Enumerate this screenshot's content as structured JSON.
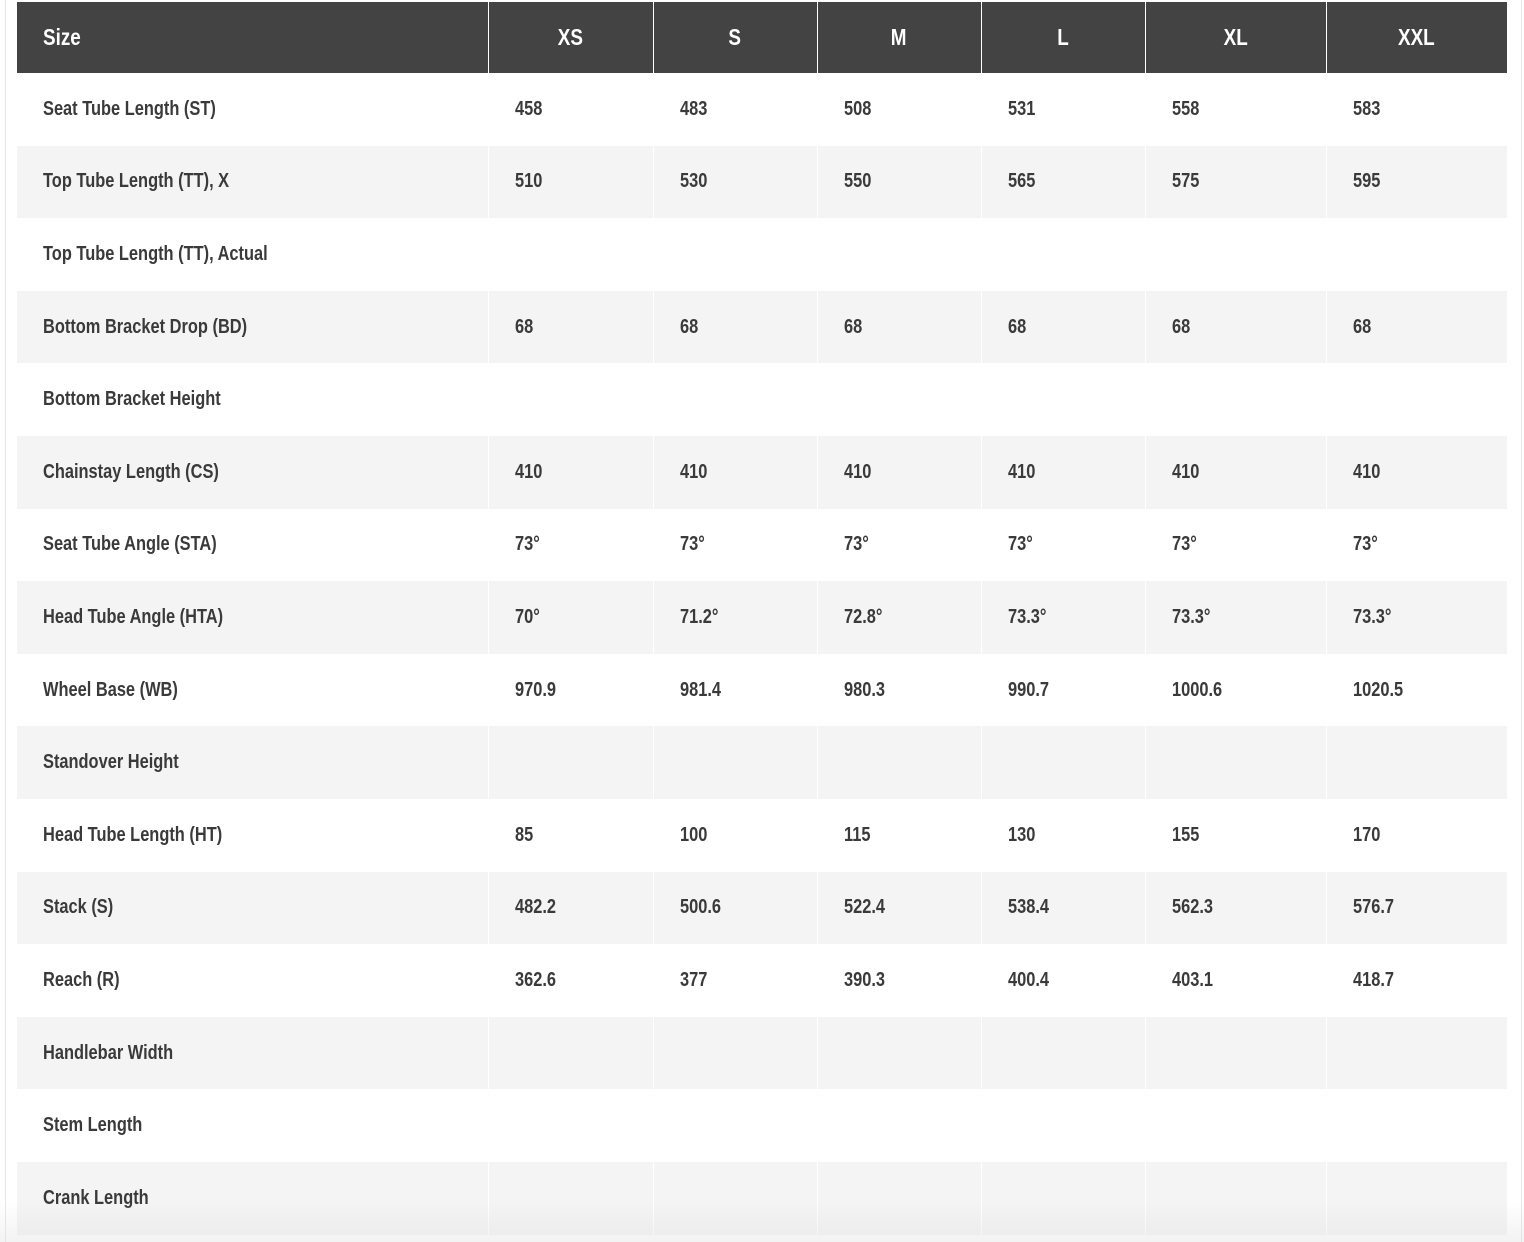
{
  "table": {
    "headers": [
      "Size",
      "XS",
      "S",
      "M",
      "L",
      "XL",
      "XXL"
    ],
    "rows": [
      {
        "label": "Seat Tube Length (ST)",
        "values": [
          "458",
          "483",
          "508",
          "531",
          "558",
          "583"
        ]
      },
      {
        "label": "Top Tube Length (TT), X",
        "values": [
          "510",
          "530",
          "550",
          "565",
          "575",
          "595"
        ]
      },
      {
        "label": "Top Tube Length (TT), Actual",
        "values": [
          "",
          "",
          "",
          "",
          "",
          ""
        ]
      },
      {
        "label": "Bottom Bracket Drop (BD)",
        "values": [
          "68",
          "68",
          "68",
          "68",
          "68",
          "68"
        ]
      },
      {
        "label": "Bottom Bracket Height",
        "values": [
          "",
          "",
          "",
          "",
          "",
          ""
        ]
      },
      {
        "label": "Chainstay Length (CS)",
        "values": [
          "410",
          "410",
          "410",
          "410",
          "410",
          "410"
        ]
      },
      {
        "label": "Seat Tube Angle (STA)",
        "values": [
          "73°",
          "73°",
          "73°",
          "73°",
          "73°",
          "73°"
        ]
      },
      {
        "label": "Head Tube Angle (HTA)",
        "values": [
          "70°",
          "71.2°",
          "72.8°",
          "73.3°",
          "73.3°",
          "73.3°"
        ]
      },
      {
        "label": "Wheel Base (WB)",
        "values": [
          "970.9",
          "981.4",
          "980.3",
          "990.7",
          "1000.6",
          "1020.5"
        ]
      },
      {
        "label": "Standover Height",
        "values": [
          "",
          "",
          "",
          "",
          "",
          ""
        ]
      },
      {
        "label": "Head Tube Length (HT)",
        "values": [
          "85",
          "100",
          "115",
          "130",
          "155",
          "170"
        ]
      },
      {
        "label": "Stack (S)",
        "values": [
          "482.2",
          "500.6",
          "522.4",
          "538.4",
          "562.3",
          "576.7"
        ]
      },
      {
        "label": "Reach (R)",
        "values": [
          "362.6",
          "377",
          "390.3",
          "400.4",
          "403.1",
          "418.7"
        ]
      },
      {
        "label": "Handlebar Width",
        "values": [
          "",
          "",
          "",
          "",
          "",
          ""
        ]
      },
      {
        "label": "Stem Length",
        "values": [
          "",
          "",
          "",
          "",
          "",
          ""
        ]
      },
      {
        "label": "Crank Length",
        "values": [
          "",
          "",
          "",
          "",
          "",
          ""
        ]
      }
    ]
  }
}
